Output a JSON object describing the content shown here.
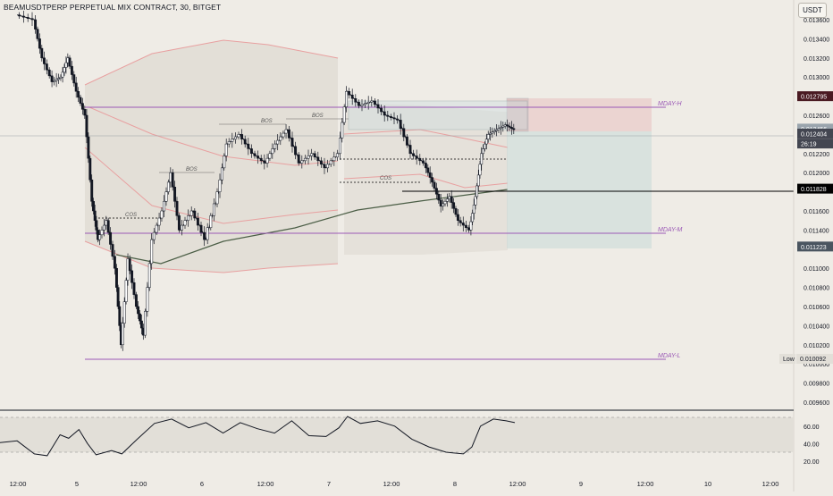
{
  "header": {
    "symbol_title": "BEAMUSDTPERP PERPETUAL MIX CONTRACT, 30, BITGET",
    "currency_button": "USDT"
  },
  "price_axis": {
    "ticks": [
      "0.013600",
      "0.013400",
      "0.013200",
      "0.013000",
      "0.012600",
      "0.012200",
      "0.012000",
      "0.011600",
      "0.011400",
      "0.011000",
      "0.010800",
      "0.010600",
      "0.010400",
      "0.010200",
      "0.010000",
      "0.009800",
      "0.009600"
    ],
    "tick_values": [
      0.0136,
      0.0134,
      0.0132,
      0.013,
      0.0126,
      0.0122,
      0.012,
      0.0116,
      0.0114,
      0.011,
      0.0108,
      0.0106,
      0.0104,
      0.0102,
      0.01,
      0.0098,
      0.0096
    ],
    "tags": [
      {
        "text": "0.012795",
        "value": 0.012795,
        "color": "#4a1a22"
      },
      {
        "text": "0.012456",
        "value": 0.012456,
        "color": "#9aa4ad"
      },
      {
        "text": "0.012404",
        "value": 0.012404,
        "color": "#434651"
      },
      {
        "text": "26:19",
        "value": 0.0123,
        "color": "#434651"
      },
      {
        "text": "0.011828",
        "value": 0.011828,
        "color": "#000000"
      },
      {
        "text": "0.011223",
        "value": 0.011223,
        "color": "#4a5560"
      }
    ],
    "low_label": "Low",
    "low_value_text": "0.010092"
  },
  "time_axis": {
    "labels": [
      "12:00",
      "5",
      "12:00",
      "6",
      "12:00",
      "7",
      "12:00",
      "8",
      "12:00",
      "9",
      "12:00",
      "10",
      "12:00"
    ]
  },
  "rsi_axis": {
    "ticks": [
      "60.00",
      "40.00",
      "20.00"
    ],
    "values": [
      60,
      40,
      20
    ]
  },
  "annotations": {
    "mday_h": "MDAY-H",
    "mday_m": "MDAY-M",
    "mday_l": "MDAY-L",
    "bos": "BOS",
    "cos": "COS"
  },
  "chart_data": {
    "type": "candlestick",
    "title": "BEAMUSDTPERP PERPETUAL MIX CONTRACT, 30, BITGET",
    "timeframe": "30",
    "exchange": "BITGET",
    "last_price": 0.012404,
    "countdown": "26:19",
    "y_range": [
      0.0095,
      0.01375
    ],
    "levels": [
      {
        "name": "MDAY-H",
        "value": 0.012795
      },
      {
        "name": "MDAY-M",
        "value": 0.0114
      },
      {
        "name": "MDAY-L",
        "value": 0.010092
      },
      {
        "name": "level",
        "value": 0.011828
      }
    ],
    "position": {
      "entry": 0.012456,
      "stop": 0.012795,
      "target": 0.011223
    },
    "price_path": [
      {
        "t": 0.02,
        "p": 0.01365
      },
      {
        "t": 0.04,
        "p": 0.0136
      },
      {
        "t": 0.05,
        "p": 0.0132
      },
      {
        "t": 0.062,
        "p": 0.01295
      },
      {
        "t": 0.072,
        "p": 0.013
      },
      {
        "t": 0.08,
        "p": 0.0132
      },
      {
        "t": 0.09,
        "p": 0.01285
      },
      {
        "t": 0.1,
        "p": 0.0126
      },
      {
        "t": 0.108,
        "p": 0.0117
      },
      {
        "t": 0.115,
        "p": 0.0113
      },
      {
        "t": 0.125,
        "p": 0.0115
      },
      {
        "t": 0.135,
        "p": 0.011
      },
      {
        "t": 0.142,
        "p": 0.0102
      },
      {
        "t": 0.15,
        "p": 0.0111
      },
      {
        "t": 0.16,
        "p": 0.0106
      },
      {
        "t": 0.168,
        "p": 0.0103
      },
      {
        "t": 0.178,
        "p": 0.0113
      },
      {
        "t": 0.19,
        "p": 0.0116
      },
      {
        "t": 0.2,
        "p": 0.012
      },
      {
        "t": 0.21,
        "p": 0.0114
      },
      {
        "t": 0.225,
        "p": 0.0116
      },
      {
        "t": 0.24,
        "p": 0.0113
      },
      {
        "t": 0.255,
        "p": 0.0118
      },
      {
        "t": 0.265,
        "p": 0.0123
      },
      {
        "t": 0.28,
        "p": 0.0124
      },
      {
        "t": 0.295,
        "p": 0.0122
      },
      {
        "t": 0.31,
        "p": 0.0121
      },
      {
        "t": 0.322,
        "p": 0.0123
      },
      {
        "t": 0.335,
        "p": 0.01245
      },
      {
        "t": 0.35,
        "p": 0.0121
      },
      {
        "t": 0.365,
        "p": 0.0122
      },
      {
        "t": 0.38,
        "p": 0.01205
      },
      {
        "t": 0.395,
        "p": 0.0122
      },
      {
        "t": 0.405,
        "p": 0.01285
      },
      {
        "t": 0.42,
        "p": 0.0127
      },
      {
        "t": 0.435,
        "p": 0.01275
      },
      {
        "t": 0.45,
        "p": 0.0126
      },
      {
        "t": 0.465,
        "p": 0.01255
      },
      {
        "t": 0.48,
        "p": 0.0122
      },
      {
        "t": 0.495,
        "p": 0.0121
      },
      {
        "t": 0.505,
        "p": 0.0119
      },
      {
        "t": 0.515,
        "p": 0.01165
      },
      {
        "t": 0.525,
        "p": 0.01175
      },
      {
        "t": 0.535,
        "p": 0.0115
      },
      {
        "t": 0.548,
        "p": 0.0114
      },
      {
        "t": 0.555,
        "p": 0.01175
      },
      {
        "t": 0.562,
        "p": 0.0122
      },
      {
        "t": 0.57,
        "p": 0.0124
      },
      {
        "t": 0.58,
        "p": 0.01245
      },
      {
        "t": 0.59,
        "p": 0.0125
      },
      {
        "t": 0.6,
        "p": 0.01245
      }
    ],
    "rsi_path": [
      {
        "t": 0.0,
        "v": 41
      },
      {
        "t": 0.02,
        "v": 43
      },
      {
        "t": 0.04,
        "v": 28
      },
      {
        "t": 0.055,
        "v": 26
      },
      {
        "t": 0.07,
        "v": 50
      },
      {
        "t": 0.08,
        "v": 46
      },
      {
        "t": 0.092,
        "v": 56
      },
      {
        "t": 0.102,
        "v": 40
      },
      {
        "t": 0.112,
        "v": 27
      },
      {
        "t": 0.13,
        "v": 32
      },
      {
        "t": 0.142,
        "v": 28
      },
      {
        "t": 0.16,
        "v": 45
      },
      {
        "t": 0.18,
        "v": 63
      },
      {
        "t": 0.2,
        "v": 68
      },
      {
        "t": 0.22,
        "v": 58
      },
      {
        "t": 0.24,
        "v": 64
      },
      {
        "t": 0.26,
        "v": 52
      },
      {
        "t": 0.28,
        "v": 64
      },
      {
        "t": 0.3,
        "v": 57
      },
      {
        "t": 0.32,
        "v": 52
      },
      {
        "t": 0.34,
        "v": 66
      },
      {
        "t": 0.36,
        "v": 49
      },
      {
        "t": 0.38,
        "v": 48
      },
      {
        "t": 0.395,
        "v": 58
      },
      {
        "t": 0.405,
        "v": 71
      },
      {
        "t": 0.42,
        "v": 63
      },
      {
        "t": 0.44,
        "v": 66
      },
      {
        "t": 0.46,
        "v": 60
      },
      {
        "t": 0.48,
        "v": 45
      },
      {
        "t": 0.5,
        "v": 36
      },
      {
        "t": 0.52,
        "v": 30
      },
      {
        "t": 0.54,
        "v": 28
      },
      {
        "t": 0.55,
        "v": 36
      },
      {
        "t": 0.56,
        "v": 60
      },
      {
        "t": 0.575,
        "v": 68
      },
      {
        "t": 0.59,
        "v": 66
      },
      {
        "t": 0.6,
        "v": 64
      }
    ],
    "rsi_range": [
      15,
      75
    ],
    "rsi_band": [
      30,
      70
    ]
  }
}
